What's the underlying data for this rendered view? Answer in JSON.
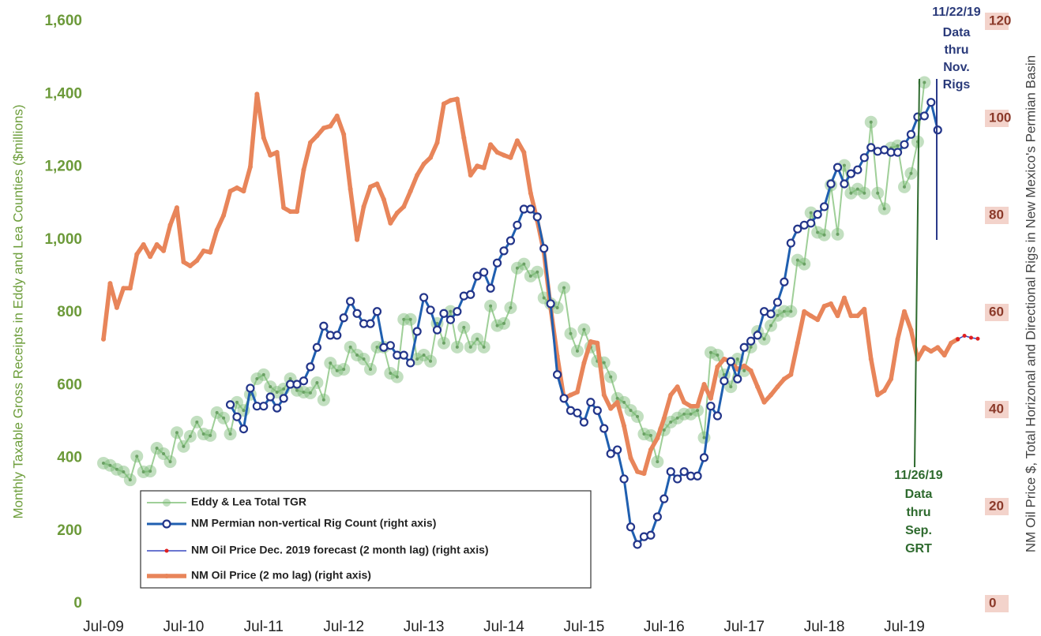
{
  "chart_data": {
    "type": "line",
    "y_label": "Monthly Taxable Gross Receipts in Eddy and Lea Counties ($millions)",
    "y2_label": "NM Oil Price $, Total Horizonal and Directional Rigs in New Mexico's Permian Basin",
    "annotations": [
      {
        "lines": [
          "11/22/19",
          "Data",
          "thru",
          "Nov.",
          "Rigs"
        ]
      },
      {
        "lines": [
          "11/26/19",
          "Data",
          "thru",
          "Sep.",
          "GRT"
        ]
      }
    ],
    "legend": "lower left",
    "categories": [
      "Jul-09",
      null,
      null,
      null,
      null,
      null,
      null,
      null,
      null,
      null,
      null,
      null,
      "Jul-10",
      null,
      null,
      null,
      null,
      null,
      null,
      null,
      null,
      null,
      null,
      null,
      "Jul-11",
      null,
      null,
      null,
      null,
      null,
      null,
      null,
      null,
      null,
      null,
      null,
      "Jul-12",
      null,
      null,
      null,
      null,
      null,
      null,
      null,
      null,
      null,
      null,
      null,
      "Jul-13",
      null,
      null,
      null,
      null,
      null,
      null,
      null,
      null,
      null,
      null,
      null,
      "Jul-14",
      null,
      null,
      null,
      null,
      null,
      null,
      null,
      null,
      null,
      null,
      null,
      "Jul-15",
      null,
      null,
      null,
      null,
      null,
      null,
      null,
      null,
      null,
      null,
      null,
      "Jul-16",
      null,
      null,
      null,
      null,
      null,
      null,
      null,
      null,
      null,
      null,
      null,
      "Jul-17",
      null,
      null,
      null,
      null,
      null,
      null,
      null,
      null,
      null,
      null,
      null,
      "Jul-18",
      null,
      null,
      null,
      null,
      null,
      null,
      null,
      null,
      null,
      null,
      null,
      "Jul-19",
      null,
      null,
      null,
      null,
      null,
      null,
      null,
      null,
      null,
      null,
      null
    ],
    "ylim": [
      0,
      1600
    ],
    "yticks": [
      0,
      200,
      400,
      600,
      800,
      {
        "value": 1000,
        "label": "1,000"
      },
      {
        "value": 1200,
        "label": "1,200"
      },
      {
        "value": 1400,
        "label": "1,400"
      },
      {
        "value": 1600,
        "label": "1,600"
      }
    ],
    "y2lim": [
      0,
      120
    ],
    "y2ticks": [
      0,
      20,
      40,
      60,
      80,
      100,
      120
    ],
    "series": [
      {
        "name": "Eddy & Lea Total TGR",
        "color": "#9fcf98",
        "axis": "y",
        "values": [
          386,
          380,
          369,
          362,
          340,
          405,
          362,
          364,
          427,
          412,
          390,
          470,
          432,
          460,
          499,
          466,
          462,
          525,
          510,
          466,
          553,
          531,
          575,
          618,
          629,
          596,
          581,
          590,
          618,
          586,
          581,
          579,
          607,
          560,
          661,
          640,
          644,
          705,
          683,
          672,
          644,
          705,
          705,
          633,
          623,
          781,
          781,
          672,
          683,
          666,
          770,
          716,
          803,
          705,
          759,
          705,
          727,
          705,
          818,
          764,
          770,
          813,
          922,
          933,
          900,
          911,
          840,
          824,
          813,
          868,
          742,
          694,
          753,
          705,
          666,
          662,
          623,
          564,
          553,
          531,
          514,
          466,
          462,
          390,
          477,
          499,
          510,
          521,
          521,
          531,
          456,
          690,
          683,
          629,
          596,
          672,
          640,
          705,
          748,
          727,
          764,
          792,
          803,
          803,
          944,
          933,
          1074,
          1020,
          1013,
          1150,
          1015,
          1204,
          1128,
          1139,
          1128,
          1323,
          1128,
          1085,
          1252,
          1258,
          1145,
          1182,
          1269,
          1432,
          null,
          null,
          null,
          null,
          null,
          null,
          null,
          null
        ]
      },
      {
        "name": "NM Permian non-vertical Rig Count (right axis)",
        "color": "#1f5fb0",
        "axis": "y2",
        "values": [
          null,
          null,
          null,
          null,
          null,
          null,
          null,
          null,
          null,
          null,
          null,
          null,
          null,
          null,
          null,
          null,
          null,
          null,
          null,
          41,
          38.5,
          36,
          44.4,
          40.7,
          40.7,
          42.6,
          40.3,
          42.3,
          45.2,
          45.2,
          45.9,
          48.8,
          52.8,
          57.2,
          55.3,
          55.3,
          58.9,
          62.3,
          59.8,
          57.7,
          57.7,
          60.2,
          52.8,
          53.2,
          51.2,
          51.2,
          49.6,
          56.1,
          63.1,
          60.5,
          56.4,
          59.8,
          58.5,
          60.2,
          63.4,
          63.7,
          67.5,
          68.3,
          65,
          70.2,
          72.7,
          74.8,
          78,
          81.3,
          81.3,
          79.7,
          73.2,
          61.8,
          47.2,
          42.3,
          39.8,
          39.3,
          37.4,
          41.5,
          39.8,
          36.1,
          30.9,
          31.7,
          25.7,
          15.8,
          12.2,
          13.8,
          14.1,
          17.9,
          21.6,
          27.2,
          25.7,
          27.2,
          26.3,
          26.3,
          30.1,
          40.7,
          38.7,
          45.9,
          49.9,
          46.3,
          52.8,
          54.1,
          55.3,
          60.2,
          59.7,
          62.1,
          66.3,
          74.3,
          77.2,
          78,
          78.4,
          80.2,
          81.8,
          86.5,
          89.9,
          86.5,
          88.6,
          89.4,
          91.9,
          94,
          93.2,
          93.5,
          93,
          93,
          94.6,
          96.7,
          100.3,
          100.5,
          103.3,
          97.6,
          null,
          null,
          null,
          null,
          null,
          null
        ]
      },
      {
        "name": "NM Oil Price Dec. 2019 forecast (2 month lag) (right axis)",
        "color": "#3848c0",
        "marker_color": "#e02020",
        "axis": "y2",
        "values": [
          null,
          null,
          null,
          null,
          null,
          null,
          null,
          null,
          null,
          null,
          null,
          null,
          null,
          null,
          null,
          null,
          null,
          null,
          null,
          null,
          null,
          null,
          null,
          null,
          null,
          null,
          null,
          null,
          null,
          null,
          null,
          null,
          null,
          null,
          null,
          null,
          null,
          null,
          null,
          null,
          null,
          null,
          null,
          null,
          null,
          null,
          null,
          null,
          null,
          null,
          null,
          null,
          null,
          null,
          null,
          null,
          null,
          null,
          null,
          null,
          null,
          null,
          null,
          null,
          null,
          null,
          null,
          null,
          null,
          null,
          null,
          null,
          null,
          null,
          null,
          null,
          null,
          null,
          null,
          null,
          null,
          null,
          null,
          null,
          null,
          null,
          null,
          null,
          null,
          null,
          null,
          null,
          null,
          null,
          null,
          null,
          null,
          null,
          null,
          null,
          null,
          null,
          null,
          null,
          null,
          null,
          null,
          null,
          null,
          null,
          null,
          null,
          null,
          null,
          null,
          null,
          null,
          null,
          null,
          null,
          null,
          null,
          null,
          null,
          null,
          null,
          null,
          null,
          54.5,
          55.2,
          54.8,
          54.6
        ]
      },
      {
        "name": "NM Oil Price (2 mo lag) (right axis)",
        "color": "#e8855a",
        "axis": "y2",
        "values": [
          54.5,
          66,
          61,
          65,
          65,
          72,
          74,
          71.5,
          74,
          72.7,
          78,
          81.6,
          70.4,
          69.6,
          70.7,
          72.7,
          72.4,
          77,
          80,
          85,
          85.7,
          85,
          90,
          105,
          96,
          92.4,
          93,
          81.6,
          80.8,
          80.8,
          89.4,
          95,
          96.4,
          98,
          98.4,
          100.5,
          96.7,
          85.4,
          75,
          81.8,
          85.9,
          86.5,
          83.3,
          78.4,
          80.5,
          81.8,
          85,
          88.3,
          90.6,
          91.9,
          95,
          103,
          103.7,
          104,
          96,
          88.3,
          90.2,
          89.8,
          94.6,
          93,
          92.4,
          91.9,
          95.4,
          93,
          84.6,
          78.9,
          72.4,
          61,
          51,
          42.3,
          43,
          43.6,
          49.6,
          54,
          53.7,
          43,
          40.2,
          41.5,
          36.6,
          30,
          27.2,
          26.8,
          31.7,
          34.1,
          38.2,
          43,
          44.7,
          41.5,
          40.7,
          40.7,
          45.2,
          42.3,
          48.8,
          50.4,
          49.9,
          48.3,
          49,
          48,
          44.7,
          41.5,
          43,
          44.7,
          46.3,
          47.2,
          53.7,
          60.2,
          59.3,
          58.5,
          61.3,
          61.8,
          59.3,
          63,
          59.3,
          59.3,
          60.7,
          50.4,
          43,
          43.9,
          46.3,
          54.5,
          60.2,
          56.4,
          50.4,
          52.8,
          52,
          52.8,
          51.2,
          53.7,
          54.5,
          null,
          null,
          null
        ]
      }
    ]
  }
}
